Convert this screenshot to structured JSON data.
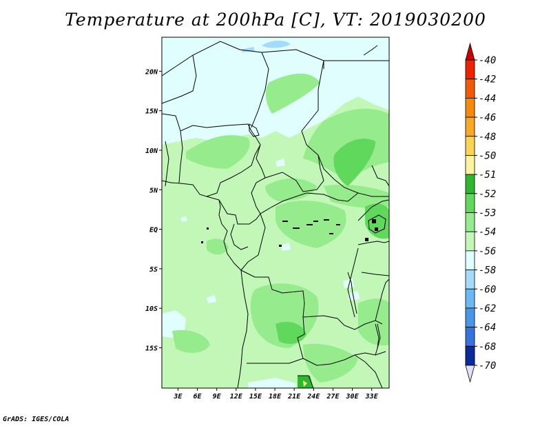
{
  "title": "Temperature at 200hPa [C], VT: 2019030200",
  "credit": "GrADS: IGES/COLA",
  "lat_ticks": [
    {
      "lat": 20,
      "label": "20N"
    },
    {
      "lat": 15,
      "label": "15N"
    },
    {
      "lat": 10,
      "label": "10N"
    },
    {
      "lat": 5,
      "label": "5N"
    },
    {
      "lat": 0,
      "label": "EQ"
    },
    {
      "lat": -5,
      "label": "5S"
    },
    {
      "lat": -10,
      "label": "10S"
    },
    {
      "lat": -15,
      "label": "15S"
    }
  ],
  "lon_ticks": [
    {
      "lon": 3,
      "label": "3E"
    },
    {
      "lon": 6,
      "label": "6E"
    },
    {
      "lon": 9,
      "label": "9E"
    },
    {
      "lon": 12,
      "label": "12E"
    },
    {
      "lon": 15,
      "label": "15E"
    },
    {
      "lon": 18,
      "label": "18E"
    },
    {
      "lon": 21,
      "label": "21E"
    },
    {
      "lon": 24,
      "label": "24E"
    },
    {
      "lon": 27,
      "label": "27E"
    },
    {
      "lon": 30,
      "label": "30E"
    },
    {
      "lon": 33,
      "label": "33E"
    }
  ],
  "colorbar": [
    {
      "label": "-40",
      "color": "#ee2200"
    },
    {
      "label": "-42",
      "color": "#f25a06"
    },
    {
      "label": "-44",
      "color": "#f68a0c"
    },
    {
      "label": "-46",
      "color": "#f8a928"
    },
    {
      "label": "-48",
      "color": "#fbd455"
    },
    {
      "label": "-50",
      "color": "#fdf2a0"
    },
    {
      "label": "-51",
      "color": "#2fb82f"
    },
    {
      "label": "-52",
      "color": "#5fd85c"
    },
    {
      "label": "-53",
      "color": "#96ec8c"
    },
    {
      "label": "-54",
      "color": "#c2f7b8"
    },
    {
      "label": "-56",
      "color": "#e0fefe"
    },
    {
      "label": "-58",
      "color": "#a6daf9"
    },
    {
      "label": "-60",
      "color": "#6cb8f2"
    },
    {
      "label": "-62",
      "color": "#4a97e9"
    },
    {
      "label": "-64",
      "color": "#3872de"
    },
    {
      "label": "-68",
      "color": "#1e4fc4"
    },
    {
      "label": "-70",
      "color": "#0b2a9c"
    }
  ],
  "colorbar_under": "#e0e0f8",
  "colorbar_over": "#cc0000",
  "colors": {
    "base_field": "#c2f7b8",
    "darker_field": "#96ec8c",
    "darkest_field": "#5fd85c",
    "cold_field": "#e0fefe",
    "cool_patch": "#a6daf9",
    "border": "#000000"
  }
}
